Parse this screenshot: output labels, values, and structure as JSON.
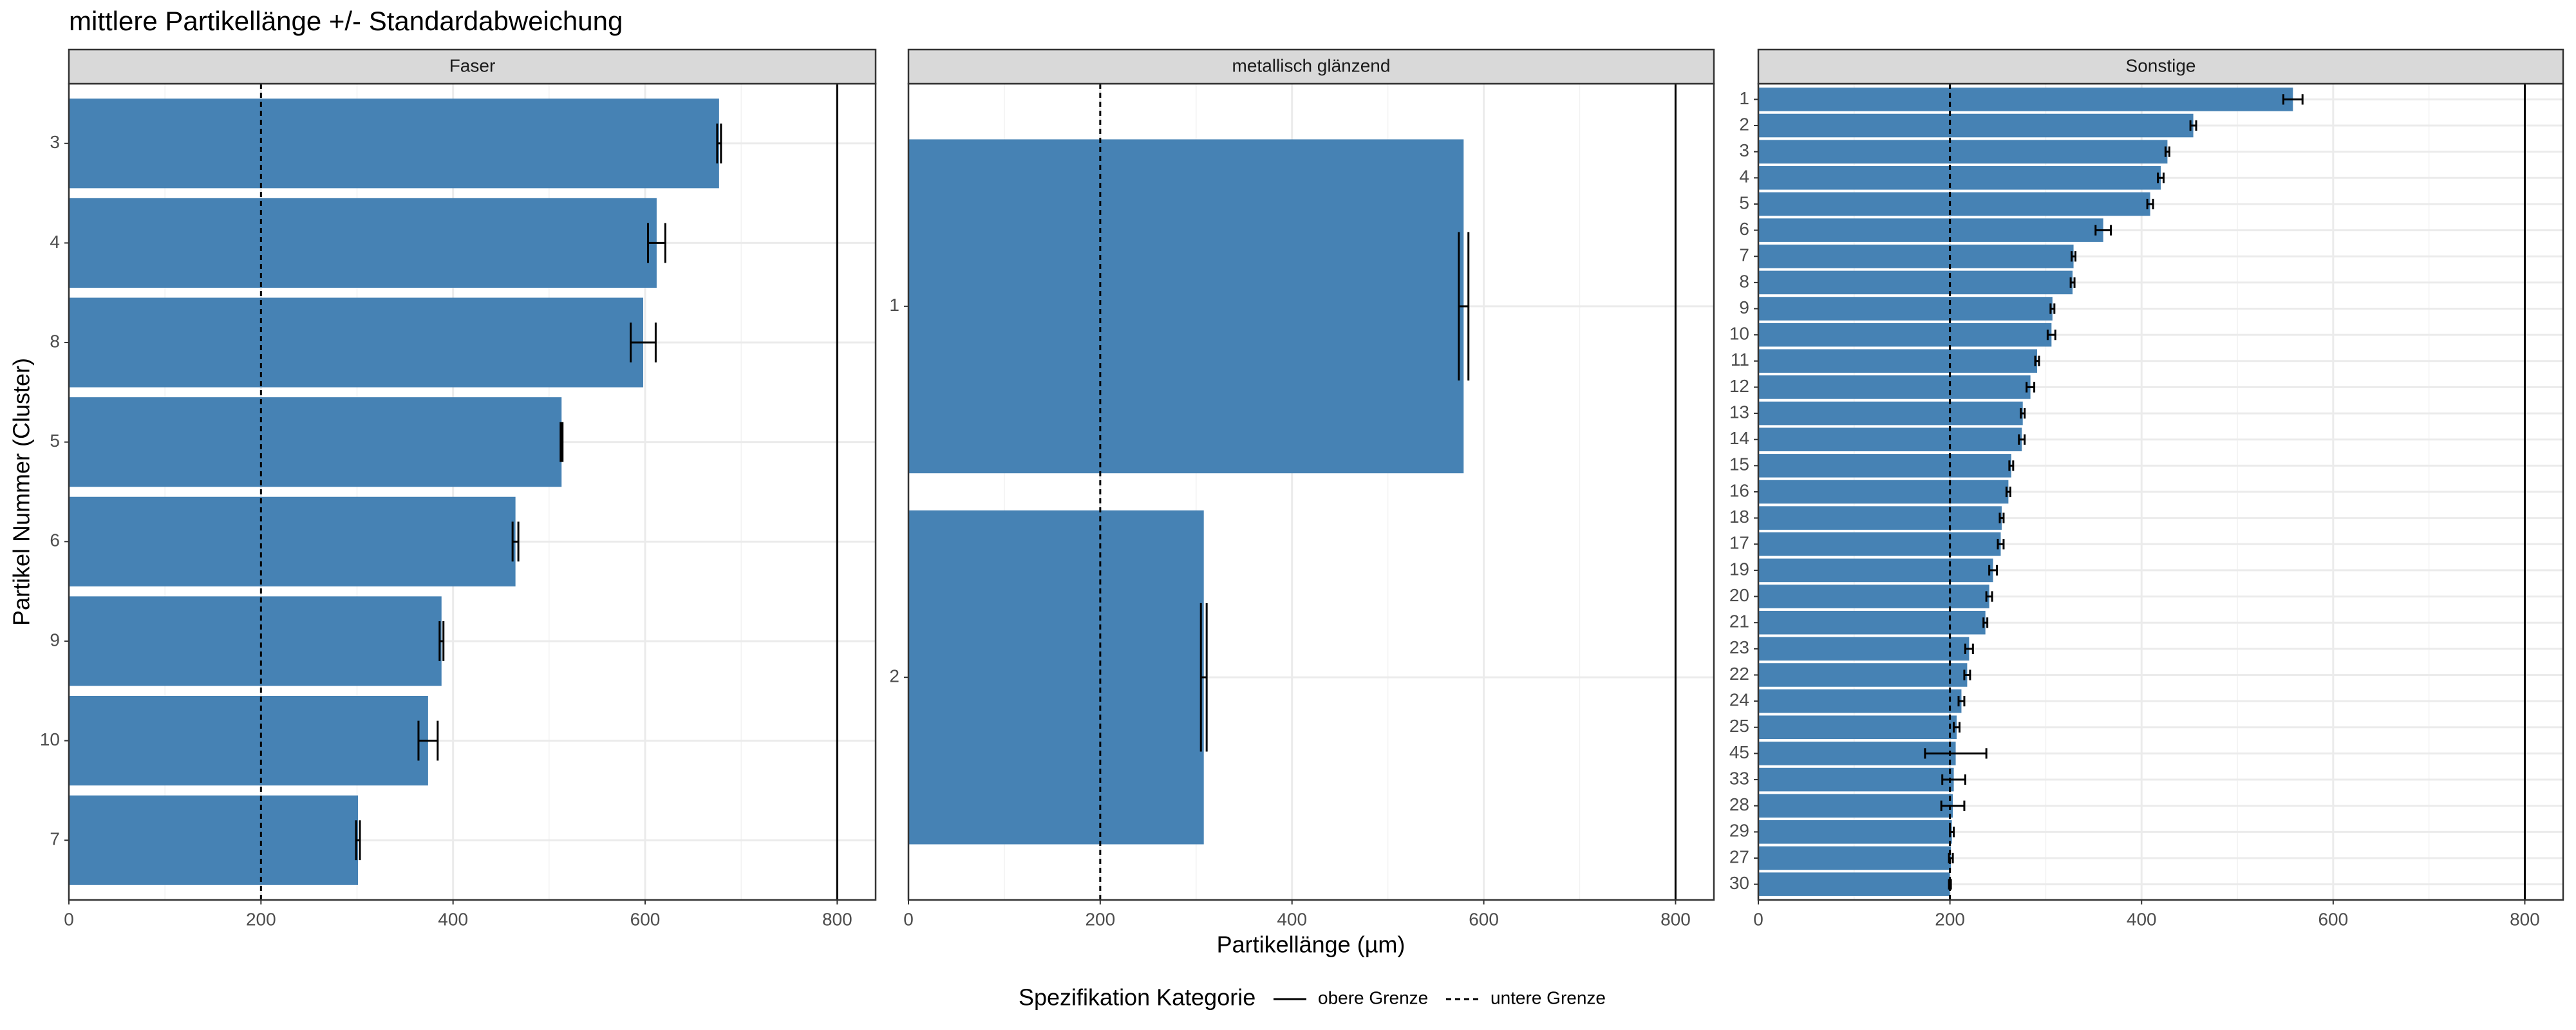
{
  "title": "mittlere Partikellänge +/- Standardabweichung",
  "x_label": "Partikellänge (µm)",
  "y_label": "Partikel Nummer (Cluster)",
  "legend_title": "Spezifikation Kategorie",
  "limits": [
    {
      "name": "obere Grenze",
      "value": 800,
      "dash": false
    },
    {
      "name": "untere Grenze",
      "value": 200,
      "dash": true
    }
  ],
  "chart_data": [
    {
      "type": "bar",
      "orientation": "horizontal",
      "title": "Faser",
      "color": "#4682b4",
      "grid": true,
      "categories": [
        "3",
        "4",
        "8",
        "5",
        "6",
        "9",
        "10",
        "7"
      ],
      "values": [
        677,
        612,
        598,
        513,
        465,
        388,
        374,
        301
      ],
      "errors": [
        2,
        9,
        13,
        1,
        3,
        2,
        10,
        2
      ],
      "xlim": [
        0,
        840
      ],
      "xticks": [
        0,
        200,
        400,
        600,
        800
      ],
      "xminor": [
        100,
        300,
        500,
        700
      ]
    },
    {
      "type": "bar",
      "orientation": "horizontal",
      "title": "metallisch glänzend",
      "color": "#4682b4",
      "grid": true,
      "categories": [
        "1",
        "2"
      ],
      "values": [
        579,
        308
      ],
      "errors": [
        5,
        3
      ],
      "xlim": [
        0,
        840
      ],
      "xticks": [
        0,
        200,
        400,
        600,
        800
      ],
      "xminor": [
        100,
        300,
        500,
        700
      ]
    },
    {
      "type": "bar",
      "orientation": "horizontal",
      "title": "Sonstige",
      "color": "#4682b4",
      "grid": true,
      "categories": [
        "1",
        "2",
        "3",
        "4",
        "5",
        "6",
        "7",
        "8",
        "9",
        "10",
        "11",
        "12",
        "13",
        "14",
        "15",
        "16",
        "18",
        "17",
        "19",
        "20",
        "21",
        "23",
        "22",
        "24",
        "25",
        "45",
        "33",
        "28",
        "29",
        "27",
        "30"
      ],
      "values": [
        558,
        454,
        427,
        420,
        409,
        360,
        329,
        328,
        307,
        306,
        291,
        284,
        276,
        275,
        264,
        261,
        254,
        253,
        245,
        241,
        237,
        220,
        218,
        212,
        207,
        206,
        204,
        203,
        202,
        201,
        200
      ],
      "errors": [
        10,
        3,
        2,
        3,
        3,
        8,
        2,
        2,
        2,
        4,
        2,
        4,
        2,
        3,
        2,
        2,
        2,
        3,
        4,
        3,
        2,
        4,
        3,
        3,
        3,
        32,
        12,
        12,
        2,
        2,
        1
      ],
      "xlim": [
        0,
        840
      ],
      "xticks": [
        0,
        200,
        400,
        600,
        800
      ],
      "xminor": [
        100,
        300,
        500,
        700
      ]
    }
  ]
}
